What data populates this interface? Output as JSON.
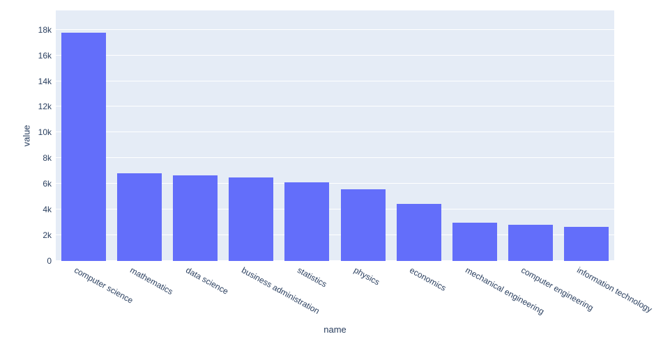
{
  "chart_data": {
    "type": "bar",
    "title": "",
    "xlabel": "name",
    "ylabel": "value",
    "categories": [
      "computer science",
      "mathematics",
      "data science",
      "business administration",
      "statistics",
      "physics",
      "economics",
      "mechanical engineering",
      "computer engineering",
      "information technology"
    ],
    "values": [
      17780,
      6800,
      6650,
      6500,
      6100,
      5580,
      4450,
      2980,
      2800,
      2680
    ],
    "ylim": [
      0,
      18000
    ],
    "ytick_step": 2000,
    "ytick_labels": [
      "0",
      "2k",
      "4k",
      "6k",
      "8k",
      "10k",
      "12k",
      "14k",
      "16k",
      "18k"
    ],
    "y_axis_max": 19500,
    "grid": "on",
    "legend": "none",
    "xtick_angle_deg": 29,
    "colors": {
      "bar": "#636efa",
      "plot_background": "#e5ecf6",
      "gridline": "#ffffff",
      "tick_text": "#2a3f5f",
      "axis_title_text": "#2a3f5f",
      "page_background": "#ffffff"
    }
  }
}
